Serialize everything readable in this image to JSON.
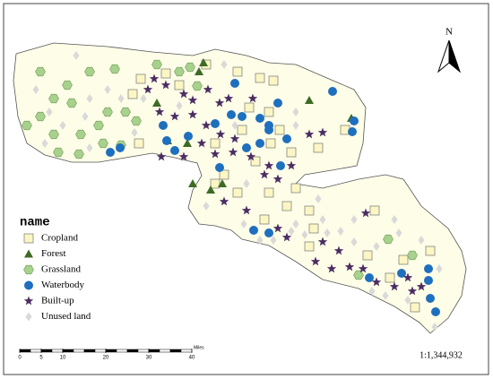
{
  "map": {
    "north_arrow": "N",
    "legend": {
      "title": "name",
      "items": [
        {
          "label": "Cropland",
          "symbol": "square",
          "color": "#fbf6c4"
        },
        {
          "label": "Forest",
          "symbol": "triangle",
          "color": "#3d6b24"
        },
        {
          "label": "Grassland",
          "symbol": "hexagon",
          "color": "#a9d18e"
        },
        {
          "label": "Waterbody",
          "symbol": "circle",
          "color": "#1f6fbf"
        },
        {
          "label": "Built-up",
          "symbol": "star",
          "color": "#4b2d63"
        },
        {
          "label": "Unused land",
          "symbol": "diamond",
          "color": "#d9d9d9"
        }
      ]
    },
    "scale_bar": {
      "ticks": [
        0,
        5,
        10,
        20,
        30,
        40
      ],
      "unit": "Miles"
    },
    "scale": "1:1,344,932"
  }
}
